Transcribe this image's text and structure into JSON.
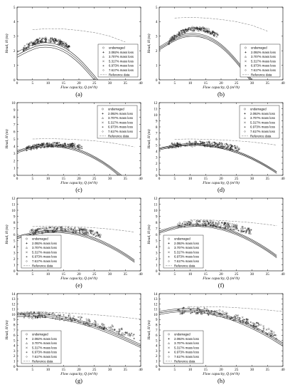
{
  "figure": {
    "axis_color": "#000000",
    "reference_color": "#888888",
    "marker_color": "#222222"
  },
  "chart_data": [
    {
      "type": "scatter",
      "panel": "(a)",
      "xlabel": "Flow capacity, Q (m³/h)",
      "ylabel": "Head, H (m)",
      "xlim": [
        0,
        40
      ],
      "ylim": [
        0,
        5
      ],
      "yticks": [
        0,
        1,
        2,
        3,
        4,
        5
      ],
      "xticks": [
        0,
        5,
        10,
        15,
        20,
        25,
        30,
        35,
        40
      ],
      "legend_position": "right",
      "legend": [
        "undamaged",
        "2.092% mass loss",
        "3.707% mass loss",
        "5.317% mass loss",
        "6.973% mass loss",
        "7.617% mass loss",
        "Reference data"
      ],
      "reference_curve": {
        "x": [
          5,
          10,
          15,
          20,
          25,
          30,
          35
        ],
        "y": [
          3.45,
          3.52,
          3.5,
          3.4,
          3.25,
          3.0,
          2.6
        ]
      },
      "fit_curves": [
        {
          "x": [
            0,
            5,
            10,
            15,
            20,
            25,
            28
          ],
          "y": [
            1.55,
            2.15,
            2.3,
            2.0,
            1.2,
            0.0,
            -0.8
          ]
        },
        {
          "x": [
            0,
            5,
            10,
            15,
            20,
            25,
            28
          ],
          "y": [
            1.7,
            2.3,
            2.45,
            2.15,
            1.35,
            0.15,
            -0.6
          ]
        },
        {
          "x": [
            0,
            5,
            10,
            15,
            20,
            25,
            28
          ],
          "y": [
            1.9,
            2.5,
            2.6,
            2.3,
            1.5,
            0.3,
            -0.5
          ]
        }
      ],
      "scatter": {
        "x_range": [
          2,
          17
        ],
        "y_center": [
          2.1,
          2.75,
          2.2
        ],
        "spread": 0.35
      }
    },
    {
      "type": "scatter",
      "panel": "(b)",
      "xlabel": "Flow capacity, Q (m³/h)",
      "ylabel": "Head, H (m)",
      "xlim": [
        0,
        40
      ],
      "ylim": [
        0,
        5
      ],
      "yticks": [
        0,
        1,
        2,
        3,
        4,
        5
      ],
      "xticks": [
        0,
        5,
        10,
        15,
        20,
        25,
        30,
        35,
        40
      ],
      "legend_position": "right",
      "legend": [
        "undamaged",
        "2.092% mass loss",
        "3.707% mass loss",
        "5.317% mass loss",
        "6.973% mass loss",
        "7.617% mass loss",
        "Reference data"
      ],
      "reference_curve": {
        "x": [
          5,
          10,
          15,
          20,
          25,
          30,
          35
        ],
        "y": [
          4.25,
          4.3,
          4.25,
          4.15,
          4.0,
          3.75,
          3.35
        ]
      },
      "fit_curves": [
        {
          "x": [
            0,
            5,
            10,
            15,
            20,
            25,
            30,
            32
          ],
          "y": [
            2.05,
            2.75,
            3.05,
            2.9,
            2.3,
            1.2,
            -0.2,
            -0.8
          ]
        },
        {
          "x": [
            0,
            5,
            10,
            15,
            20,
            25,
            30,
            32
          ],
          "y": [
            2.15,
            2.85,
            3.15,
            3.0,
            2.4,
            1.3,
            -0.1,
            -0.7
          ]
        },
        {
          "x": [
            0,
            5,
            10,
            15,
            20,
            25,
            30,
            32
          ],
          "y": [
            2.25,
            2.95,
            3.25,
            3.1,
            2.5,
            1.4,
            0.0,
            -0.6
          ]
        }
      ],
      "scatter": {
        "x_range": [
          3,
          19
        ],
        "y_center": [
          2.6,
          3.5,
          3.0
        ],
        "spread": 0.3
      }
    },
    {
      "type": "scatter",
      "panel": "(c)",
      "xlabel": "Flow capacity, Q (m³/h)",
      "ylabel": "Head, H (m)",
      "xlim": [
        0,
        40
      ],
      "ylim": [
        0,
        10
      ],
      "yticks": [
        0,
        1,
        2,
        3,
        4,
        5,
        6,
        7,
        8,
        9,
        10
      ],
      "xticks": [
        0,
        5,
        10,
        15,
        20,
        25,
        30,
        35,
        40
      ],
      "legend_position": "top-right",
      "legend": [
        "undamaged",
        "2.092% mass loss",
        "3.707% mass loss",
        "5.317% mass loss",
        "6.973% mass loss",
        "7.617% mass loss",
        "Reference data"
      ],
      "reference_curve": {
        "x": [
          5,
          10,
          15,
          20,
          25,
          30,
          35,
          38
        ],
        "y": [
          5.0,
          5.05,
          5.0,
          4.9,
          4.75,
          4.5,
          4.15,
          3.9
        ]
      },
      "fit_curves": [
        {
          "x": [
            0,
            5,
            10,
            15,
            20,
            25,
            30,
            35
          ],
          "y": [
            3.1,
            3.75,
            4.0,
            3.85,
            3.3,
            2.35,
            1.0,
            -0.8
          ]
        },
        {
          "x": [
            0,
            5,
            10,
            15,
            20,
            25,
            30,
            35
          ],
          "y": [
            3.25,
            3.9,
            4.15,
            4.0,
            3.45,
            2.5,
            1.15,
            -0.6
          ]
        },
        {
          "x": [
            0,
            5,
            10,
            15,
            20,
            25,
            30,
            35
          ],
          "y": [
            3.4,
            4.05,
            4.3,
            4.15,
            3.6,
            2.65,
            1.3,
            -0.4
          ]
        }
      ],
      "scatter": {
        "x_range": [
          3,
          21
        ],
        "y_center": [
          3.7,
          4.2,
          3.9
        ],
        "spread": 0.3
      }
    },
    {
      "type": "scatter",
      "panel": "(d)",
      "xlabel": "Flow capacity, Q (m³/h)",
      "ylabel": "Head, H (m)",
      "xlim": [
        0,
        40
      ],
      "ylim": [
        0,
        12
      ],
      "yticks": [
        0,
        1,
        2,
        3,
        4,
        5,
        6,
        7,
        8,
        9,
        10,
        11,
        12
      ],
      "xticks": [
        0,
        5,
        10,
        15,
        20,
        25,
        30,
        35,
        40
      ],
      "legend_position": "top-right",
      "legend": [
        "undamaged",
        "2.092% mass loss",
        "3.707% mass loss",
        "5.317% mass loss",
        "6.973% mass loss",
        "7.617% mass loss",
        "Reference data"
      ],
      "reference_curve": {
        "x": [
          5,
          10,
          15,
          20,
          25,
          30,
          35,
          38
        ],
        "y": [
          5.95,
          6.0,
          5.95,
          5.85,
          5.7,
          5.5,
          5.2,
          5.0
        ]
      },
      "fit_curves": [
        {
          "x": [
            0,
            5,
            10,
            15,
            20,
            25,
            30,
            35,
            38
          ],
          "y": [
            4.2,
            4.75,
            5.0,
            4.9,
            4.5,
            3.75,
            2.7,
            1.3,
            0.3
          ]
        },
        {
          "x": [
            0,
            5,
            10,
            15,
            20,
            25,
            30,
            35,
            38
          ],
          "y": [
            4.35,
            4.9,
            5.15,
            5.05,
            4.65,
            3.9,
            2.85,
            1.45,
            0.45
          ]
        },
        {
          "x": [
            0,
            5,
            10,
            15,
            20,
            25,
            30,
            35,
            38
          ],
          "y": [
            4.5,
            5.05,
            5.3,
            5.2,
            4.8,
            4.05,
            3.0,
            1.6,
            0.6
          ]
        }
      ],
      "scatter": {
        "x_range": [
          3,
          26
        ],
        "y_center": [
          4.8,
          5.2,
          4.3
        ],
        "spread": 0.35
      }
    },
    {
      "type": "scatter",
      "panel": "(e)",
      "xlabel": "Flow capacity, Q (m³/h)",
      "ylabel": "Head, H (m)",
      "xlim": [
        0,
        40
      ],
      "ylim": [
        0,
        12
      ],
      "yticks": [
        0,
        1,
        2,
        3,
        4,
        5,
        6,
        7,
        8,
        9,
        10,
        11,
        12
      ],
      "xticks": [
        0,
        5,
        10,
        15,
        20,
        25,
        30,
        35,
        40
      ],
      "legend_position": "bottom-left",
      "legend": [
        "undamaged",
        "2.092% mass loss",
        "3.707% mass loss",
        "5.317% mass loss",
        "6.973% mass loss",
        "7.617% mass loss",
        "Reference data"
      ],
      "reference_curve": {
        "x": [
          5,
          10,
          15,
          20,
          25,
          30,
          35,
          38
        ],
        "y": [
          7.3,
          7.4,
          7.35,
          7.25,
          7.1,
          6.9,
          6.6,
          6.4
        ]
      },
      "fit_curves": [
        {
          "x": [
            0,
            5,
            10,
            15,
            20,
            25,
            30,
            35,
            38
          ],
          "y": [
            5.3,
            6.0,
            6.35,
            6.3,
            5.9,
            5.1,
            3.95,
            2.45,
            1.4
          ]
        },
        {
          "x": [
            0,
            5,
            10,
            15,
            20,
            25,
            30,
            35,
            38
          ],
          "y": [
            5.5,
            6.2,
            6.55,
            6.5,
            6.1,
            5.3,
            4.15,
            2.65,
            1.6
          ]
        },
        {
          "x": [
            0,
            5,
            10,
            15,
            20,
            25,
            30,
            35,
            38
          ],
          "y": [
            5.7,
            6.4,
            6.75,
            6.7,
            6.3,
            5.5,
            4.35,
            2.85,
            1.8
          ]
        }
      ],
      "scatter": {
        "x_range": [
          4,
          27
        ],
        "y_center": [
          6.3,
          6.8,
          5.9
        ],
        "spread": 0.35
      }
    },
    {
      "type": "scatter",
      "panel": "(f)",
      "xlabel": "Flow capacity, Q (m³/h)",
      "ylabel": "Head, H (m)",
      "xlim": [
        0,
        40
      ],
      "ylim": [
        0,
        12
      ],
      "yticks": [
        0,
        1,
        2,
        3,
        4,
        5,
        6,
        7,
        8,
        9,
        10,
        11,
        12
      ],
      "xticks": [
        0,
        5,
        10,
        15,
        20,
        25,
        30,
        35,
        40
      ],
      "legend_position": "bottom-left",
      "legend": [
        "undamaged",
        "2.092% mass loss",
        "3.707% mass loss",
        "5.317% mass loss",
        "6.973% mass loss",
        "7.617% mass loss",
        "Reference data"
      ],
      "reference_curve": {
        "x": [
          10,
          15,
          20,
          25,
          30,
          35,
          38
        ],
        "y": [
          8.4,
          8.4,
          8.3,
          8.15,
          7.95,
          7.65,
          7.45
        ]
      },
      "fit_curves": [
        {
          "x": [
            0,
            5,
            10,
            15,
            20,
            25,
            30,
            35,
            38
          ],
          "y": [
            6.2,
            7.0,
            7.35,
            7.3,
            6.85,
            6.0,
            4.8,
            3.25,
            2.15
          ]
        },
        {
          "x": [
            0,
            5,
            10,
            15,
            20,
            25,
            30,
            35,
            38
          ],
          "y": [
            6.4,
            7.2,
            7.55,
            7.5,
            7.05,
            6.2,
            5.0,
            3.45,
            2.35
          ]
        },
        {
          "x": [
            0,
            5,
            10,
            15,
            20,
            25,
            30,
            35,
            38
          ],
          "y": [
            6.6,
            7.4,
            7.75,
            7.7,
            7.25,
            6.4,
            5.2,
            3.65,
            2.55
          ]
        }
      ],
      "scatter": {
        "x_range": [
          6,
          30
        ],
        "y_center": [
          7.5,
          7.7,
          6.4
        ],
        "spread": 0.4
      }
    },
    {
      "type": "scatter",
      "panel": "(g)",
      "xlabel": "Flow capacity, Q (m³/h)",
      "ylabel": "Head, H (m)",
      "xlim": [
        0,
        40
      ],
      "ylim": [
        0,
        14
      ],
      "yticks": [
        0,
        1,
        2,
        3,
        4,
        5,
        6,
        7,
        8,
        9,
        10,
        11,
        12,
        13,
        14
      ],
      "xticks": [
        0,
        5,
        10,
        15,
        20,
        25,
        30,
        35,
        40
      ],
      "legend_position": "bottom-left",
      "legend": [
        "undamaged",
        "2.092% mass loss",
        "3.707% mass loss",
        "5.317% mass loss",
        "6.973% mass loss",
        "7.617% mass loss",
        "Reference data"
      ],
      "reference_curve": {
        "x": [
          0,
          5,
          10,
          15,
          20,
          25,
          30,
          35,
          40
        ],
        "y": [
          10.4,
          10.45,
          10.4,
          10.3,
          10.15,
          9.95,
          9.7,
          9.4,
          9.1
        ]
      },
      "fit_curves": [
        {
          "x": [
            0,
            5,
            10,
            15,
            20,
            25,
            30,
            35,
            40
          ],
          "y": [
            9.6,
            9.65,
            9.4,
            8.95,
            8.3,
            7.4,
            6.3,
            5.0,
            3.6
          ]
        },
        {
          "x": [
            0,
            5,
            10,
            15,
            20,
            25,
            30,
            35,
            40
          ],
          "y": [
            9.9,
            9.95,
            9.7,
            9.25,
            8.6,
            7.7,
            6.6,
            5.3,
            3.9
          ]
        },
        {
          "x": [
            0,
            5,
            10,
            15,
            20,
            25,
            30,
            35,
            40
          ],
          "y": [
            10.2,
            10.25,
            10.0,
            9.55,
            8.9,
            8.0,
            6.9,
            5.6,
            4.2
          ]
        }
      ],
      "scatter": {
        "x_range": [
          1,
          38
        ],
        "y_center": [
          9.8,
          9.0,
          5.7
        ],
        "spread": 0.45
      }
    },
    {
      "type": "scatter",
      "panel": "(h)",
      "xlabel": "Flow capacity, Q (m³/h)",
      "ylabel": "Head, H (m)",
      "xlim": [
        0,
        40
      ],
      "ylim": [
        0,
        14
      ],
      "yticks": [
        0,
        1,
        2,
        3,
        4,
        5,
        6,
        7,
        8,
        9,
        10,
        11,
        12,
        13,
        14
      ],
      "xticks": [
        0,
        5,
        10,
        15,
        20,
        25,
        30,
        35,
        40
      ],
      "legend_position": "bottom-left",
      "legend": [
        "undamaged",
        "2.092% mass loss",
        "3.707% mass loss",
        "5.317% mass loss",
        "6.973% mass loss",
        "7.617% mass loss",
        "Reference data"
      ],
      "reference_curve": {
        "x": [
          10,
          15,
          20,
          25,
          30,
          35,
          40
        ],
        "y": [
          11.45,
          11.5,
          11.45,
          11.3,
          11.1,
          10.85,
          10.55
        ]
      },
      "fit_curves": [
        {
          "x": [
            0,
            5,
            10,
            15,
            20,
            25,
            30,
            35,
            40
          ],
          "y": [
            10.0,
            10.5,
            10.55,
            10.25,
            9.6,
            8.6,
            7.3,
            5.75,
            3.9
          ]
        },
        {
          "x": [
            0,
            5,
            10,
            15,
            20,
            25,
            30,
            35,
            40
          ],
          "y": [
            10.3,
            10.8,
            10.85,
            10.55,
            9.9,
            8.9,
            7.6,
            6.05,
            4.2
          ]
        },
        {
          "x": [
            0,
            5,
            10,
            15,
            20,
            25,
            30,
            35,
            40
          ],
          "y": [
            10.6,
            11.1,
            11.15,
            10.85,
            10.2,
            9.2,
            7.9,
            6.35,
            4.5
          ]
        }
      ],
      "scatter": {
        "x_range": [
          6,
          38
        ],
        "y_center": [
          10.7,
          9.8,
          5.8
        ],
        "spread": 0.45
      }
    }
  ]
}
